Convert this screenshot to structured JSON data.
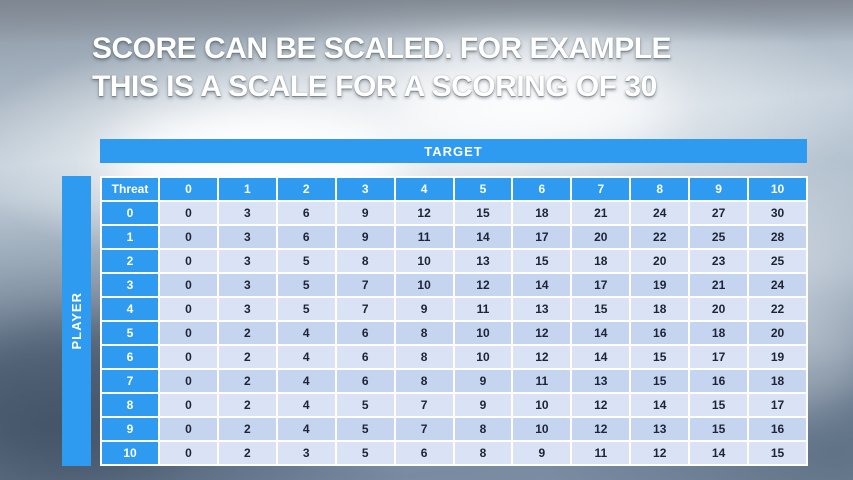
{
  "slide": {
    "title_line1": "SCORE CAN BE SCALED. FOR EXAMPLE",
    "title_line2": "THIS IS A SCALE FOR A SCORING OF 30"
  },
  "table": {
    "target_label": "TARGET",
    "player_label": "PLAYER",
    "threat_label": "Threat",
    "columns": [
      "0",
      "1",
      "2",
      "3",
      "4",
      "5",
      "6",
      "7",
      "8",
      "9",
      "10"
    ],
    "rows": [
      {
        "threat": "0",
        "values": [
          0,
          3,
          6,
          9,
          12,
          15,
          18,
          21,
          24,
          27,
          30
        ]
      },
      {
        "threat": "1",
        "values": [
          0,
          3,
          6,
          9,
          11,
          14,
          17,
          20,
          22,
          25,
          28
        ]
      },
      {
        "threat": "2",
        "values": [
          0,
          3,
          5,
          8,
          10,
          13,
          15,
          18,
          20,
          23,
          25
        ]
      },
      {
        "threat": "3",
        "values": [
          0,
          3,
          5,
          7,
          10,
          12,
          14,
          17,
          19,
          21,
          24
        ]
      },
      {
        "threat": "4",
        "values": [
          0,
          3,
          5,
          7,
          9,
          11,
          13,
          15,
          18,
          20,
          22
        ]
      },
      {
        "threat": "5",
        "values": [
          0,
          2,
          4,
          6,
          8,
          10,
          12,
          14,
          16,
          18,
          20
        ]
      },
      {
        "threat": "6",
        "values": [
          0,
          2,
          4,
          6,
          8,
          10,
          12,
          14,
          15,
          17,
          19
        ]
      },
      {
        "threat": "7",
        "values": [
          0,
          2,
          4,
          6,
          8,
          9,
          11,
          13,
          15,
          16,
          18
        ]
      },
      {
        "threat": "8",
        "values": [
          0,
          2,
          4,
          5,
          7,
          9,
          10,
          12,
          14,
          15,
          17
        ]
      },
      {
        "threat": "9",
        "values": [
          0,
          2,
          4,
          5,
          7,
          8,
          10,
          12,
          13,
          15,
          16
        ]
      },
      {
        "threat": "10",
        "values": [
          0,
          2,
          3,
          5,
          6,
          8,
          9,
          11,
          12,
          14,
          15
        ]
      }
    ]
  },
  "colors": {
    "accent_blue": "#2E9BF0",
    "row_light": "#D9E3F5",
    "row_dark": "#C6D5EF",
    "cell_text": "#1D2433",
    "title_text": "#FFFFFF"
  }
}
